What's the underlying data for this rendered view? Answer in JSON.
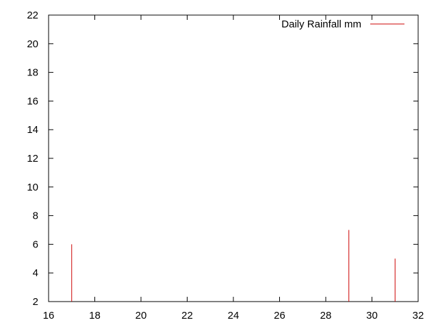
{
  "chart_data": {
    "type": "bar",
    "style": "impulses",
    "title": "",
    "xlabel": "",
    "ylabel": "",
    "xlim": [
      16,
      32
    ],
    "ylim": [
      2,
      22
    ],
    "xticks": [
      16,
      18,
      20,
      22,
      24,
      26,
      28,
      30,
      32
    ],
    "yticks": [
      2,
      4,
      6,
      8,
      10,
      12,
      14,
      16,
      18,
      20,
      22
    ],
    "grid": false,
    "legend_position": "top-right",
    "series": [
      {
        "name": "Daily Rainfall mm",
        "color": "#cc0000",
        "x": [
          17,
          29,
          31
        ],
        "values": [
          6,
          7,
          5
        ]
      }
    ]
  }
}
